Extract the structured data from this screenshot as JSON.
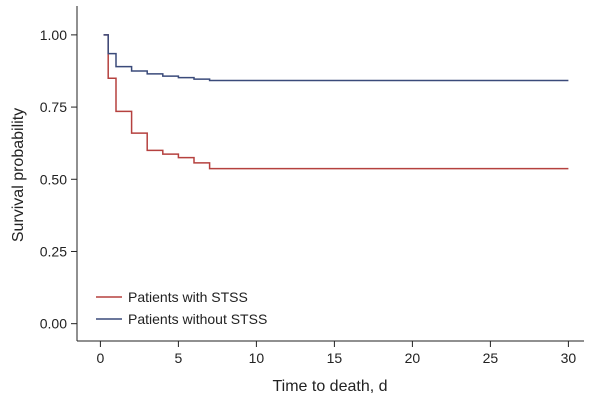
{
  "chart_data": {
    "type": "line",
    "subtype": "kaplan-meier step",
    "title": "",
    "xlabel": "Time to death, d",
    "ylabel": "Survival probability",
    "xlim": [
      -1.5,
      31
    ],
    "ylim": [
      -0.06,
      1.1
    ],
    "xticks": [
      0,
      5,
      10,
      15,
      20,
      25,
      30
    ],
    "yticks": [
      0.0,
      0.25,
      0.5,
      0.75,
      1.0
    ],
    "ytick_labels": [
      "0.00",
      "0.25",
      "0.50",
      "0.75",
      "1.00"
    ],
    "grid": false,
    "legend_position": "bottom-left",
    "series": [
      {
        "name": "Patients with STSS",
        "color": "#b5413f",
        "x": [
          0.2,
          0.5,
          1.0,
          2.0,
          3.0,
          4.0,
          5.0,
          6.0,
          7.0,
          30
        ],
        "y": [
          1.0,
          0.85,
          0.735,
          0.66,
          0.6,
          0.587,
          0.575,
          0.557,
          0.537,
          0.537
        ]
      },
      {
        "name": "Patients without STSS",
        "color": "#3a4a7a",
        "x": [
          0.2,
          0.5,
          1.0,
          2.0,
          3.0,
          4.0,
          5.0,
          6.0,
          7.0,
          30
        ],
        "y": [
          1.0,
          0.935,
          0.89,
          0.875,
          0.865,
          0.857,
          0.852,
          0.847,
          0.842,
          0.842
        ]
      }
    ]
  }
}
